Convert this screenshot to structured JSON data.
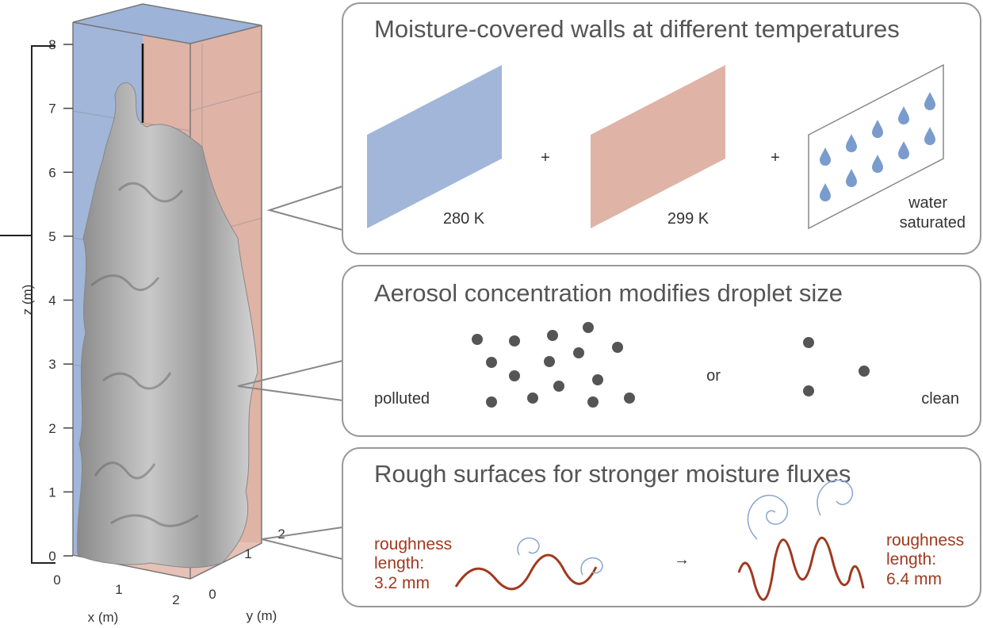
{
  "box": {
    "z_label": "z (m)",
    "x_label": "x (m)",
    "y_label": "y (m)",
    "z_ticks": [
      0,
      1,
      2,
      3,
      4,
      5,
      6,
      7,
      8
    ],
    "x_ticks": [
      0,
      1,
      2
    ],
    "y_ticks": [
      0,
      1,
      2
    ]
  },
  "panels": [
    {
      "title": "Moisture-covered walls at different temperatures",
      "cold_wall": "280 K",
      "plus_1": "+",
      "warm_wall": "299 K",
      "plus_2": "+",
      "wet_wall_line_1": "water",
      "wet_wall_line_2": "saturated"
    },
    {
      "title": "Aerosol concentration modifies droplet size",
      "left_label": "polluted",
      "connector": "or",
      "right_label": "clean"
    },
    {
      "title": "Rough surfaces for stronger moisture fluxes",
      "left_line_1": "roughness",
      "left_line_2": "length:",
      "left_line_3": "3.2 mm",
      "arrow": "→",
      "right_line_1": "roughness",
      "right_line_2": "length:",
      "right_line_3": "6.4 mm"
    }
  ]
}
